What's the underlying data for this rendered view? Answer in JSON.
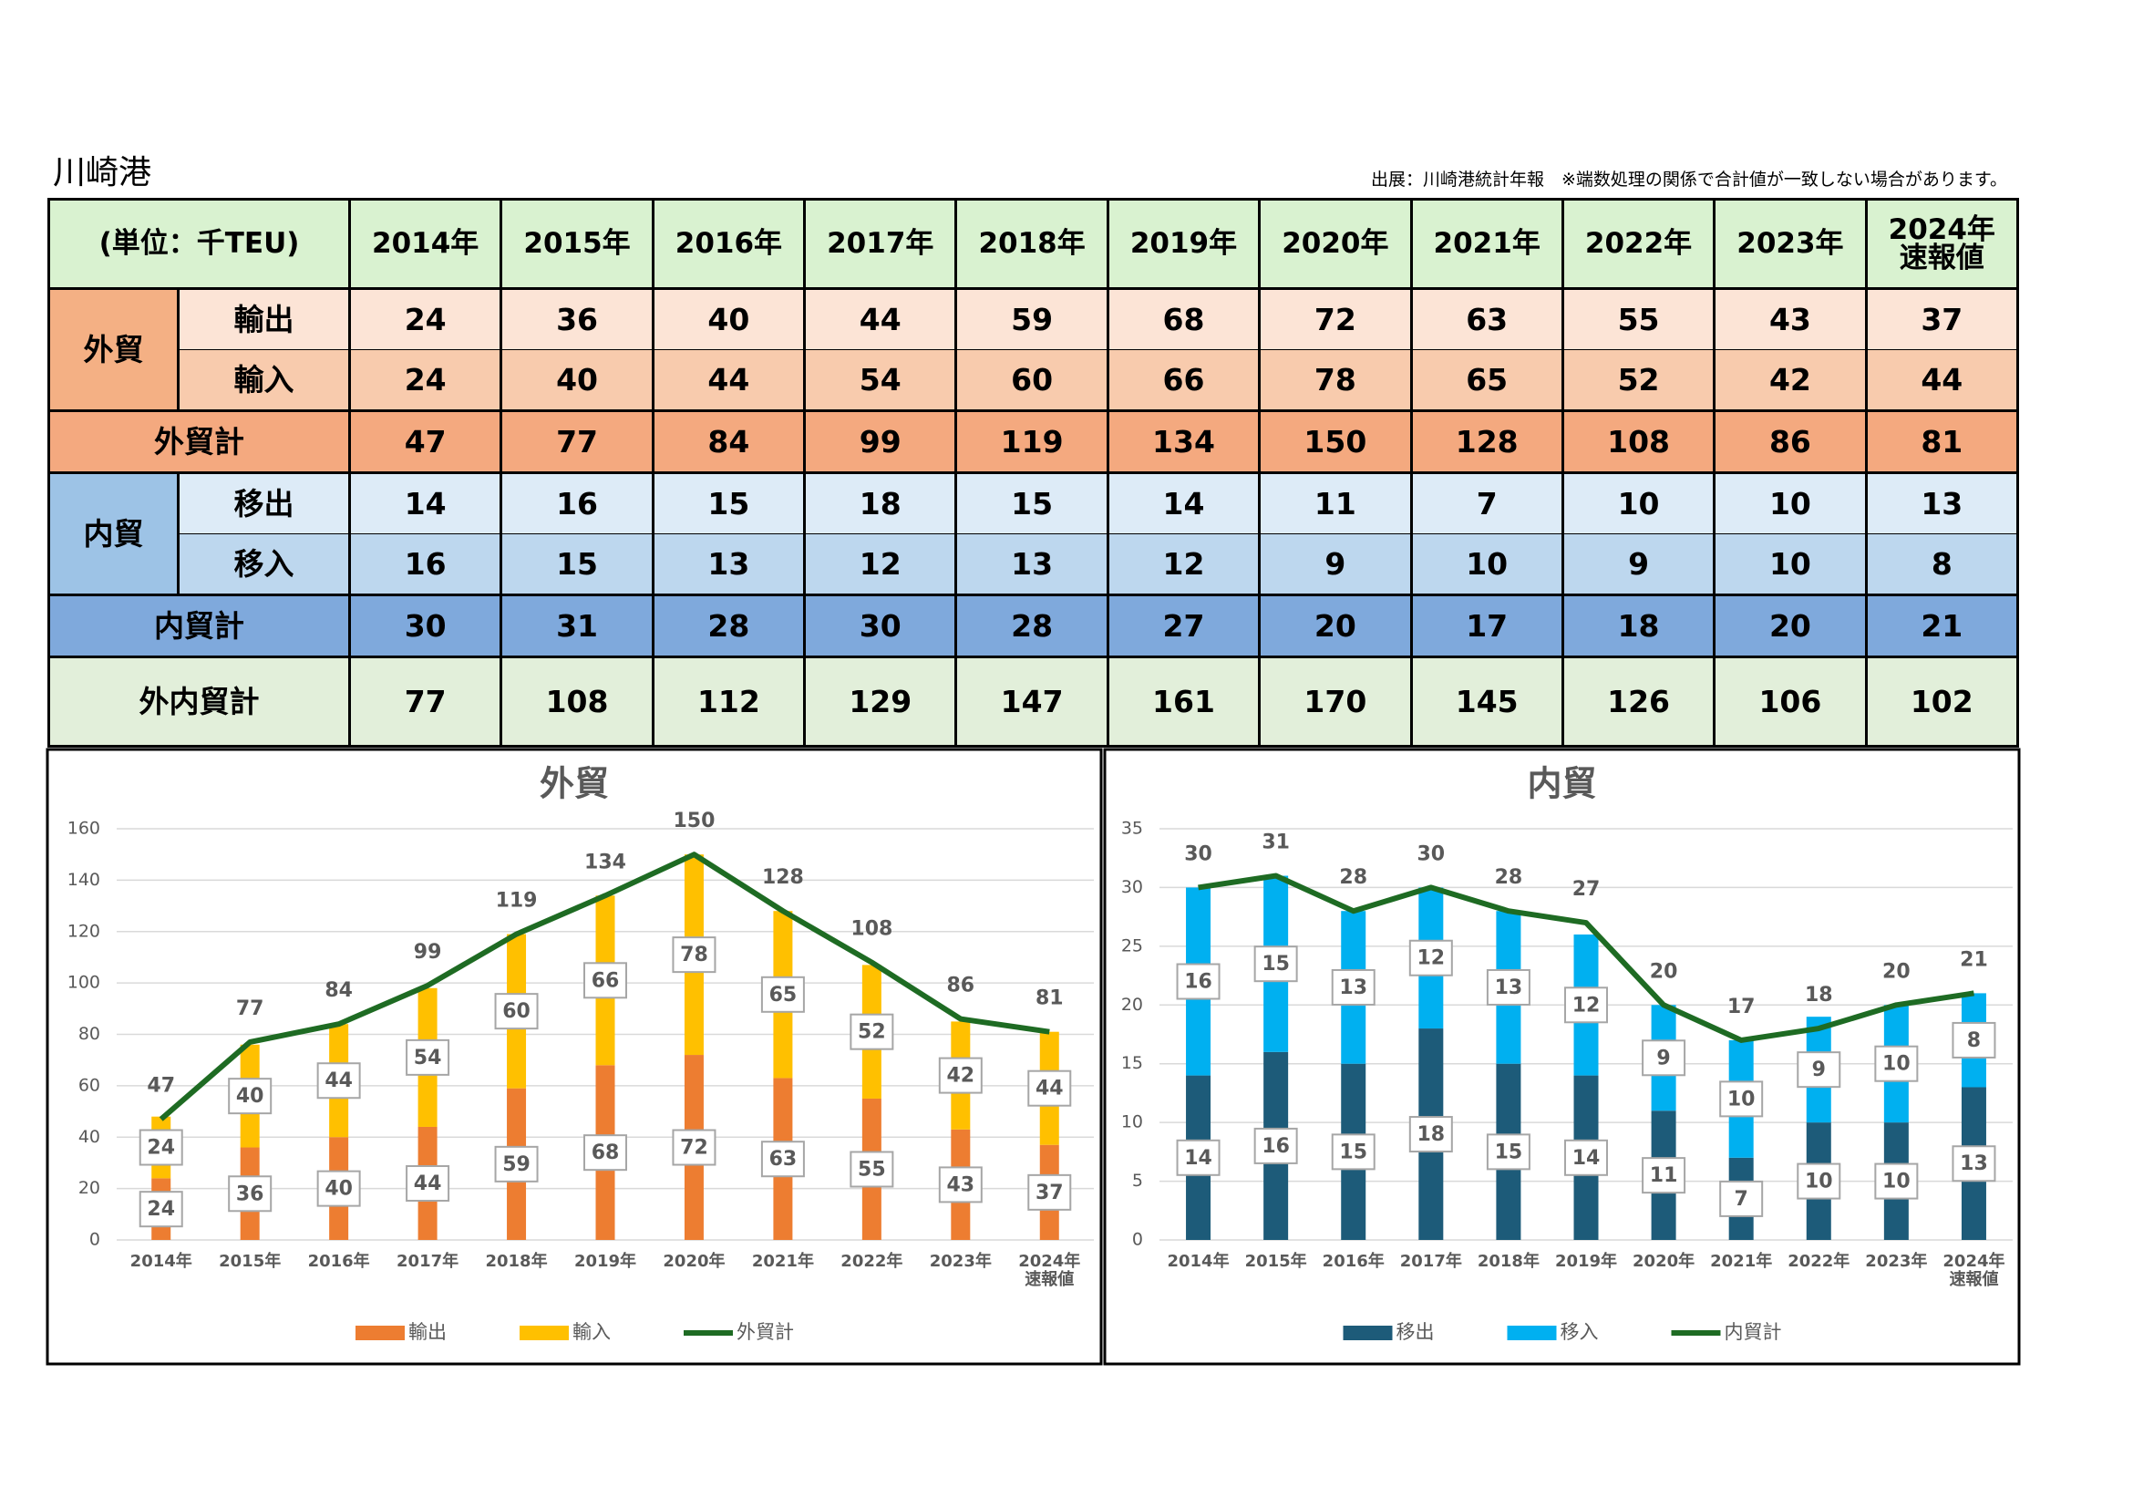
{
  "title": "川崎港",
  "source": "出展：川崎港統計年報　※端数処理の関係で合計値が一致しない場合があります。",
  "table": {
    "unit": "(単位：千TEU)",
    "years": [
      "2014年",
      "2015年",
      "2016年",
      "2017年",
      "2018年",
      "2019年",
      "2020年",
      "2021年",
      "2022年",
      "2023年",
      "2024年\n速報値"
    ],
    "groups": [
      {
        "name": "外貿",
        "rows": [
          {
            "label": "輸出",
            "values": [
              24,
              36,
              40,
              44,
              59,
              68,
              72,
              63,
              55,
              43,
              37
            ]
          },
          {
            "label": "輸入",
            "values": [
              24,
              40,
              44,
              54,
              60,
              66,
              78,
              65,
              52,
              42,
              44
            ]
          }
        ],
        "total": {
          "label": "外貿計",
          "values": [
            47,
            77,
            84,
            99,
            119,
            134,
            150,
            128,
            108,
            86,
            81
          ]
        }
      },
      {
        "name": "内貿",
        "rows": [
          {
            "label": "移出",
            "values": [
              14,
              16,
              15,
              18,
              15,
              14,
              11,
              7,
              10,
              10,
              13
            ]
          },
          {
            "label": "移入",
            "values": [
              16,
              15,
              13,
              12,
              13,
              12,
              9,
              10,
              9,
              10,
              8
            ]
          }
        ],
        "total": {
          "label": "内貿計",
          "values": [
            30,
            31,
            28,
            30,
            28,
            27,
            20,
            17,
            18,
            20,
            21
          ]
        }
      }
    ],
    "grand_total": {
      "label": "外内貿計",
      "values": [
        77,
        108,
        112,
        129,
        147,
        161,
        170,
        145,
        126,
        106,
        102
      ]
    }
  },
  "chart_data": [
    {
      "type": "bar",
      "stacked": true,
      "title": "外貿",
      "categories": [
        "2014年",
        "2015年",
        "2016年",
        "2017年",
        "2018年",
        "2019年",
        "2020年",
        "2021年",
        "2022年",
        "2023年",
        "2024年\n速報値"
      ],
      "ylim": [
        0,
        160
      ],
      "yticks": [
        0,
        20,
        40,
        60,
        80,
        100,
        120,
        140,
        160
      ],
      "grid": true,
      "legend": "bottom",
      "series": [
        {
          "name": "輸出",
          "type": "bar",
          "color": "#ed7d31",
          "values": [
            24,
            36,
            40,
            44,
            59,
            68,
            72,
            63,
            55,
            43,
            37
          ]
        },
        {
          "name": "輸入",
          "type": "bar",
          "color": "#ffc000",
          "values": [
            24,
            40,
            44,
            54,
            60,
            66,
            78,
            65,
            52,
            42,
            44
          ]
        },
        {
          "name": "外貿計",
          "type": "line",
          "color": "#1e6b23",
          "values": [
            47,
            77,
            84,
            99,
            119,
            134,
            150,
            128,
            108,
            86,
            81
          ]
        }
      ]
    },
    {
      "type": "bar",
      "stacked": true,
      "title": "内貿",
      "categories": [
        "2014年",
        "2015年",
        "2016年",
        "2017年",
        "2018年",
        "2019年",
        "2020年",
        "2021年",
        "2022年",
        "2023年",
        "2024年\n速報値"
      ],
      "ylim": [
        0,
        35
      ],
      "yticks": [
        0,
        5,
        10,
        15,
        20,
        25,
        30,
        35
      ],
      "grid": true,
      "legend": "bottom",
      "series": [
        {
          "name": "移出",
          "type": "bar",
          "color": "#1d5b79",
          "values": [
            14,
            16,
            15,
            18,
            15,
            14,
            11,
            7,
            10,
            10,
            13
          ]
        },
        {
          "name": "移入",
          "type": "bar",
          "color": "#00b0f0",
          "values": [
            16,
            15,
            13,
            12,
            13,
            12,
            9,
            10,
            9,
            10,
            8
          ]
        },
        {
          "name": "内貿計",
          "type": "line",
          "color": "#1e6b23",
          "values": [
            30,
            31,
            28,
            30,
            28,
            27,
            20,
            17,
            18,
            20,
            21
          ]
        }
      ]
    }
  ]
}
